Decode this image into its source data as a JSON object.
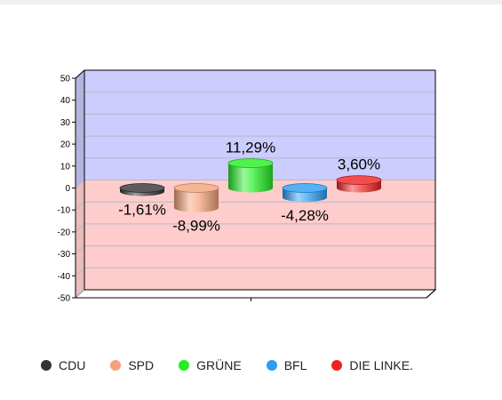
{
  "chart_data": {
    "type": "bar",
    "categories": [
      "CDU",
      "SPD",
      "GRÜNE",
      "BFL",
      "DIE LINKE."
    ],
    "values": [
      -1.61,
      -8.99,
      11.29,
      -4.28,
      3.6
    ],
    "data_labels": [
      "-1,61%",
      "-8,99%",
      "11,29%",
      "-4,28%",
      "3,60%"
    ],
    "colors": [
      "#333333",
      "#f4a27a",
      "#22ee22",
      "#2a9df4",
      "#ee2222"
    ],
    "ylim": [
      -50,
      50
    ],
    "y_ticks": [
      "50",
      "40",
      "30",
      "20",
      "10",
      "0",
      "-10",
      "-20",
      "-30",
      "-40",
      "-50"
    ],
    "positive_region_color": "#ccccff",
    "negative_region_color": "#ffcccc",
    "grid": true,
    "legend_position": "bottom",
    "title": "",
    "xlabel": "",
    "ylabel": ""
  },
  "legend": [
    {
      "label": "CDU",
      "color": "#333333"
    },
    {
      "label": "SPD",
      "color": "#f4a27a"
    },
    {
      "label": "GRÜNE",
      "color": "#22ee22"
    },
    {
      "label": "BFL",
      "color": "#2a9df4"
    },
    {
      "label": "DIE LINKE.",
      "color": "#ee2222"
    }
  ]
}
